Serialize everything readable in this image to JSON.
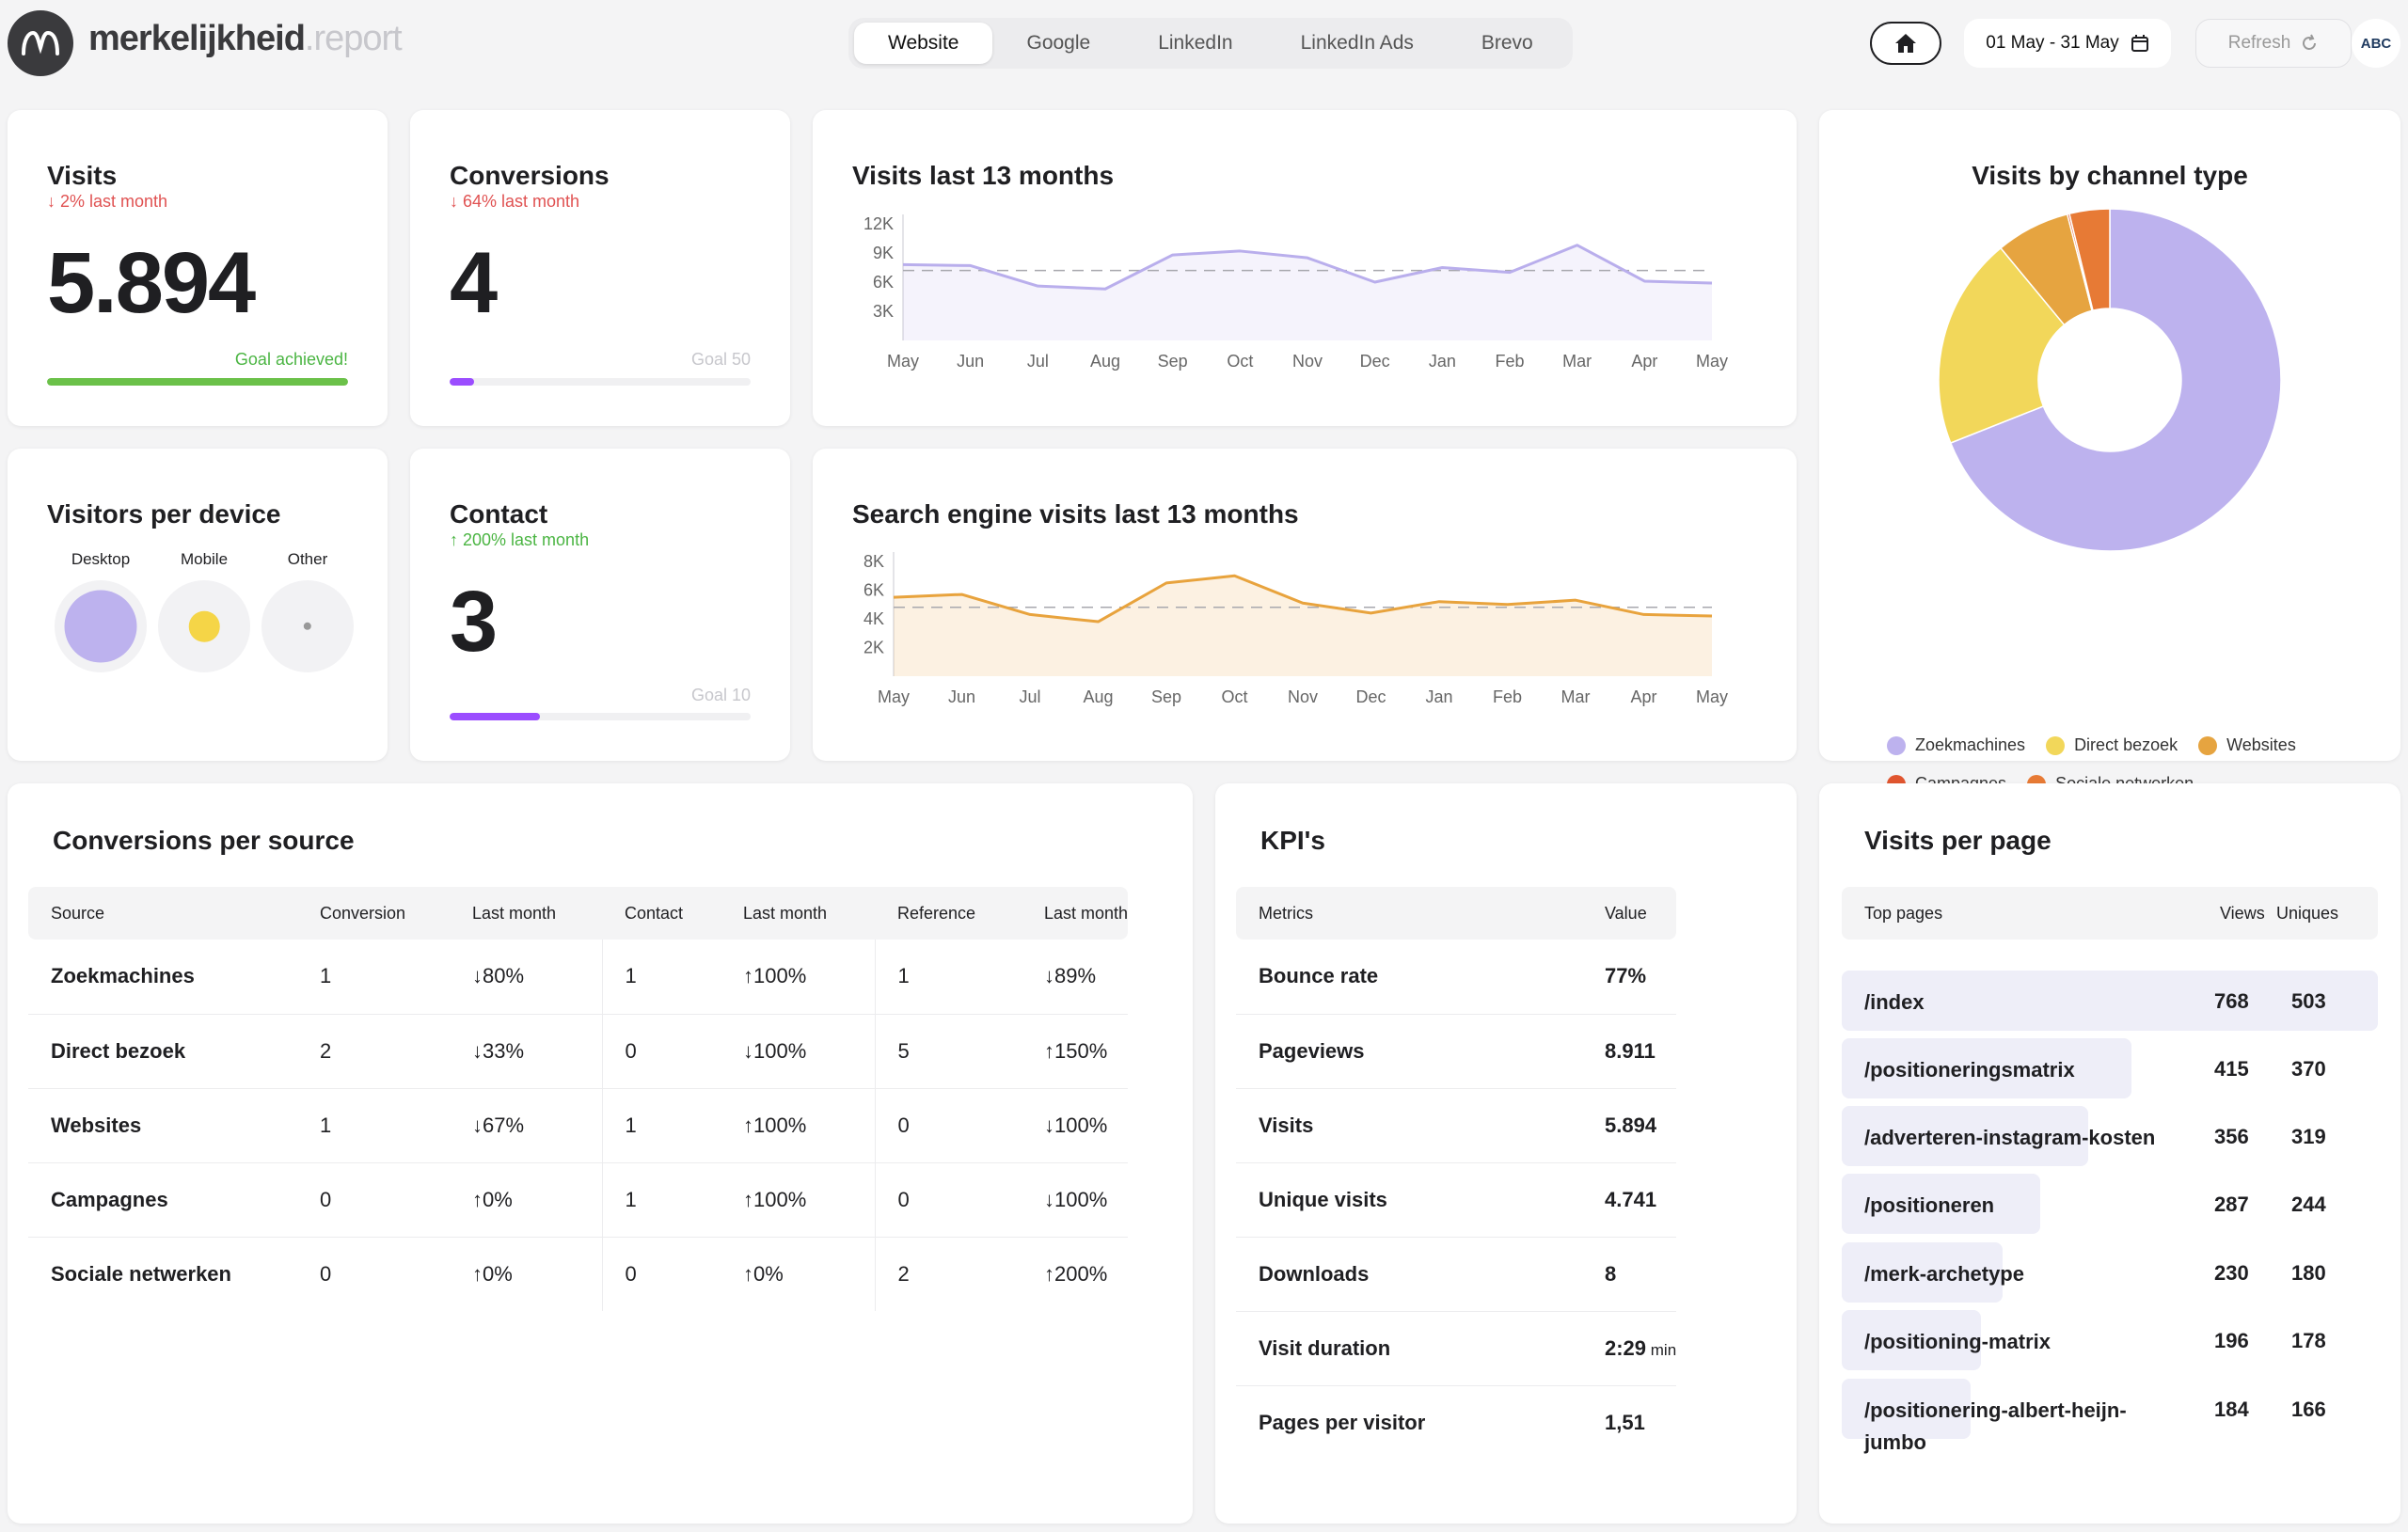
{
  "header": {
    "brand_main": "merkelijkheid",
    "brand_suffix": ".report",
    "tabs": [
      {
        "label": "Website",
        "active": true
      },
      {
        "label": "Google",
        "active": false
      },
      {
        "label": "LinkedIn",
        "active": false
      },
      {
        "label": "LinkedIn Ads",
        "active": false
      },
      {
        "label": "Brevo",
        "active": false
      }
    ],
    "date_range": "01 May - 31 May",
    "refresh_label": "Refresh",
    "avatar_text": "ABC"
  },
  "visits_card": {
    "title": "Visits",
    "trend": "↓ 2% last month",
    "value": "5.894",
    "goal_label": "Goal achieved!",
    "progress": 1.0,
    "bar_color": "#6bc149"
  },
  "conversions_card": {
    "title": "Conversions",
    "trend": "↓ 64% last month",
    "value": "4",
    "goal_label": "Goal 50",
    "progress": 0.08,
    "bar_color": "#9b4dff"
  },
  "contact_card": {
    "title": "Contact",
    "trend": "↑ 200% last month",
    "value": "3",
    "goal_label": "Goal 10",
    "progress": 0.3,
    "bar_color": "#9b4dff"
  },
  "device_card": {
    "title": "Visitors per device",
    "devices": [
      {
        "label": "Desktop",
        "color": "#bdb2ee",
        "share": 0.84
      },
      {
        "label": "Mobile",
        "color": "#f5d547",
        "share": 0.15
      },
      {
        "label": "Other",
        "color": "#999999",
        "share": 0.01
      }
    ]
  },
  "visits_13_chart": {
    "title": "Visits last 13 months",
    "chart_data": {
      "type": "area",
      "categories": [
        "May",
        "Jun",
        "Jul",
        "Aug",
        "Sep",
        "Oct",
        "Nov",
        "Dec",
        "Jan",
        "Feb",
        "Mar",
        "Apr",
        "May"
      ],
      "values": [
        7800,
        7700,
        5600,
        5300,
        8800,
        9200,
        8500,
        6000,
        7500,
        7000,
        9800,
        6100,
        5900
      ],
      "average": 7200,
      "yticks": [
        "12K",
        "9K",
        "6K",
        "3K"
      ],
      "ylim": [
        0,
        12000
      ],
      "color": "#b9aeec"
    }
  },
  "search_13_chart": {
    "title": "Search engine visits last 13 months",
    "chart_data": {
      "type": "area",
      "categories": [
        "May",
        "Jun",
        "Jul",
        "Aug",
        "Sep",
        "Oct",
        "Nov",
        "Dec",
        "Jan",
        "Feb",
        "Mar",
        "Apr",
        "May"
      ],
      "values": [
        5500,
        5700,
        4300,
        3800,
        6500,
        7000,
        5100,
        4400,
        5200,
        5000,
        5300,
        4300,
        4200
      ],
      "average": 4800,
      "yticks": [
        "8K",
        "6K",
        "4K",
        "2K"
      ],
      "ylim": [
        0,
        8000
      ],
      "color": "#e8a33d"
    }
  },
  "channel_card": {
    "title": "Visits by channel type",
    "chart_data": {
      "type": "pie",
      "series": [
        {
          "name": "Zoekmachines",
          "value": 69,
          "color": "#bdb2ee"
        },
        {
          "name": "Direct bezoek",
          "value": 20,
          "color": "#f2d75a"
        },
        {
          "name": "Websites",
          "value": 7,
          "color": "#e6a440"
        },
        {
          "name": "Campagnes",
          "value": 0.2,
          "color": "#e0552f"
        },
        {
          "name": "Sociale netwerken",
          "value": 3.8,
          "color": "#e77a35"
        }
      ]
    }
  },
  "conversions_table": {
    "title": "Conversions per source",
    "headers": [
      "Source",
      "Conversion",
      "Last month",
      "Contact",
      "Last month",
      "Reference",
      "Last month"
    ],
    "rows": [
      [
        "Zoekmachines",
        "1",
        "↓80%",
        "1",
        "↑100%",
        "1",
        "↓89%"
      ],
      [
        "Direct bezoek",
        "2",
        "↓33%",
        "0",
        "↓100%",
        "5",
        "↑150%"
      ],
      [
        "Websites",
        "1",
        "↓67%",
        "1",
        "↑100%",
        "0",
        "↓100%"
      ],
      [
        "Campagnes",
        "0",
        "↑0%",
        "1",
        "↑100%",
        "0",
        "↓100%"
      ],
      [
        "Sociale netwerken",
        "0",
        "↑0%",
        "0",
        "↑0%",
        "2",
        "↑200%"
      ]
    ]
  },
  "kpi_table": {
    "title": "KPI's",
    "headers": [
      "Metrics",
      "Value"
    ],
    "rows": [
      {
        "metric": "Bounce rate",
        "value": "77%",
        "unit": ""
      },
      {
        "metric": "Pageviews",
        "value": "8.911",
        "unit": ""
      },
      {
        "metric": "Visits",
        "value": "5.894",
        "unit": ""
      },
      {
        "metric": "Unique visits",
        "value": "4.741",
        "unit": ""
      },
      {
        "metric": "Downloads",
        "value": "8",
        "unit": ""
      },
      {
        "metric": "Visit duration",
        "value": "2:29",
        "unit": "min"
      },
      {
        "metric": "Pages per visitor",
        "value": "1,51",
        "unit": ""
      }
    ]
  },
  "pages_card": {
    "title": "Visits per page",
    "headers": [
      "Top pages",
      "Views",
      "Uniques"
    ],
    "rows": [
      {
        "page": "/index",
        "views": "768",
        "uniques": "503",
        "share": 1.0
      },
      {
        "page": "/positioneringsmatrix",
        "views": "415",
        "uniques": "370",
        "share": 0.54
      },
      {
        "page": "/adverteren-instagram-kosten",
        "views": "356",
        "uniques": "319",
        "share": 0.46
      },
      {
        "page": "/positioneren",
        "views": "287",
        "uniques": "244",
        "share": 0.37
      },
      {
        "page": "/merk-archetype",
        "views": "230",
        "uniques": "180",
        "share": 0.3
      },
      {
        "page": "/positioning-matrix",
        "views": "196",
        "uniques": "178",
        "share": 0.26
      },
      {
        "page": "/positionering-albert-heijn-jumbo",
        "views": "184",
        "uniques": "166",
        "share": 0.24
      }
    ]
  }
}
